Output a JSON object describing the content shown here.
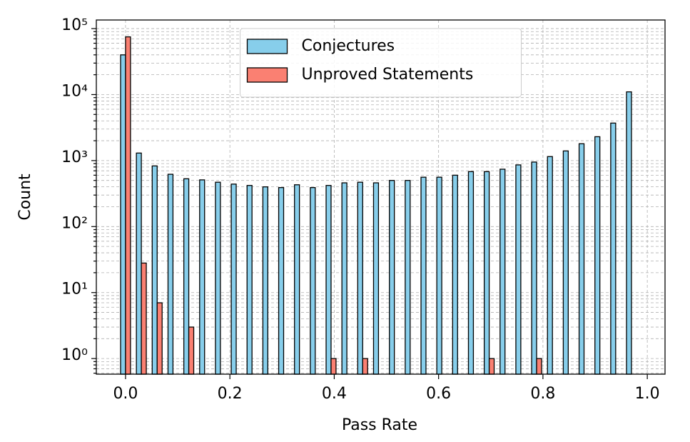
{
  "chart_data": {
    "type": "bar",
    "x_label": "Pass Rate",
    "y_label": "Count",
    "x": [
      0,
      0.0303,
      0.0606,
      0.0909,
      0.1212,
      0.1515,
      0.1818,
      0.2121,
      0.2424,
      0.2727,
      0.303,
      0.3333,
      0.3636,
      0.3939,
      0.4242,
      0.4545,
      0.4848,
      0.5152,
      0.5455,
      0.5758,
      0.6061,
      0.6364,
      0.6667,
      0.697,
      0.7273,
      0.7576,
      0.7879,
      0.8182,
      0.8485,
      0.8788,
      0.9091,
      0.9394,
      0.9697
    ],
    "series": [
      {
        "name": "Conjectures",
        "color": "#87ceeb",
        "values": [
          40000,
          1300,
          830,
          620,
          530,
          510,
          470,
          440,
          420,
          400,
          390,
          430,
          390,
          420,
          460,
          470,
          460,
          500,
          500,
          560,
          560,
          600,
          680,
          680,
          740,
          860,
          950,
          1150,
          1400,
          1800,
          2300,
          3700,
          11000
        ]
      },
      {
        "name": "Unproved Statements",
        "color": "#fa8072",
        "values": [
          75000,
          28,
          7,
          null,
          3,
          null,
          null,
          null,
          null,
          null,
          null,
          null,
          null,
          1,
          null,
          1,
          null,
          null,
          null,
          null,
          null,
          null,
          null,
          1,
          null,
          null,
          1,
          null,
          null,
          null,
          null,
          null,
          null
        ]
      }
    ],
    "edge_color": "#000000",
    "xlim": [
      -0.056,
      1.034
    ],
    "xticks": [
      {
        "value": 0,
        "label": "0.0"
      },
      0.2,
      0.4,
      0.6,
      0.8,
      {
        "value": 1,
        "label": "1.0"
      }
    ],
    "ylim": [
      0.58,
      135000
    ],
    "y_scale": "log",
    "yticks": [
      {
        "value": 1,
        "label": "10⁰"
      },
      {
        "value": 10,
        "label": "10¹"
      },
      {
        "value": 100,
        "label": "10²"
      },
      {
        "value": 1000,
        "label": "10³"
      },
      {
        "value": 10000,
        "label": "10⁴"
      },
      {
        "value": 100000,
        "label": "10⁵"
      }
    ],
    "grid": true,
    "legend": "upper center"
  }
}
